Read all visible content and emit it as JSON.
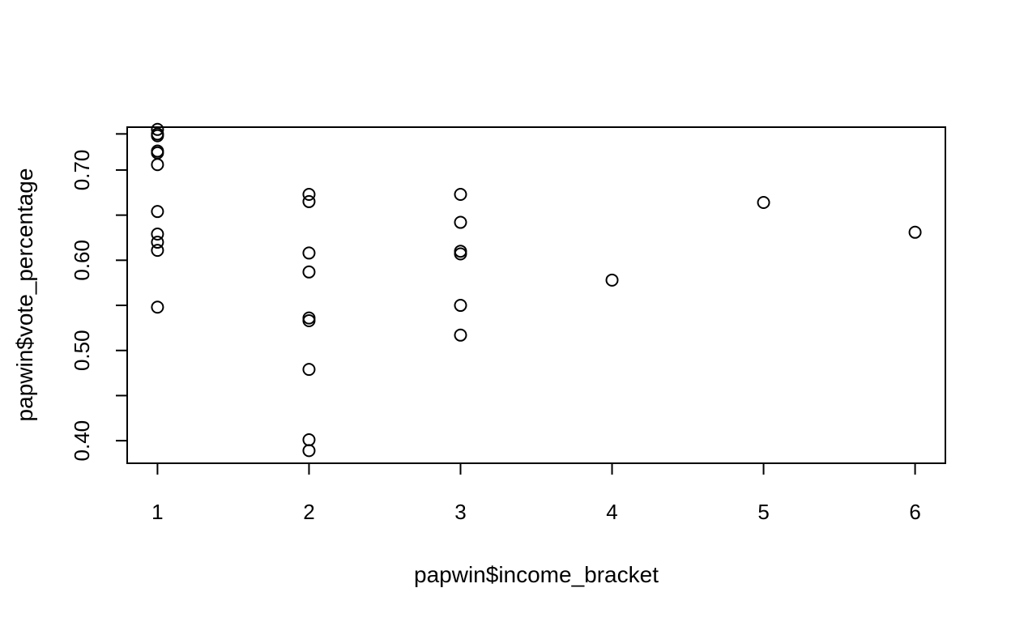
{
  "chart_data": {
    "type": "scatter",
    "title": "",
    "xlabel": "papwin$income_bracket",
    "ylabel": "papwin$vote_percentage",
    "xlim": [
      0.8,
      6.2
    ],
    "ylim": [
      0.375,
      0.7475
    ],
    "grid": false,
    "legend": "none",
    "x_ticks": [
      1,
      2,
      3,
      4,
      5,
      6
    ],
    "x_tick_labels": [
      "1",
      "2",
      "3",
      "4",
      "5",
      "6"
    ],
    "y_ticks": [
      0.4,
      0.45,
      0.5,
      0.55,
      0.6,
      0.65,
      0.7,
      0.74
    ],
    "y_tick_labels": [
      {
        "value": 0.4,
        "label": "0.40"
      },
      {
        "value": 0.5,
        "label": "0.50"
      },
      {
        "value": 0.6,
        "label": "0.60"
      },
      {
        "value": 0.7,
        "label": "0.70"
      }
    ],
    "points": [
      {
        "x": 1,
        "y": 0.745
      },
      {
        "x": 1,
        "y": 0.74
      },
      {
        "x": 1,
        "y": 0.738
      },
      {
        "x": 1,
        "y": 0.721
      },
      {
        "x": 1,
        "y": 0.719
      },
      {
        "x": 1,
        "y": 0.706
      },
      {
        "x": 1,
        "y": 0.654
      },
      {
        "x": 1,
        "y": 0.629
      },
      {
        "x": 1,
        "y": 0.62
      },
      {
        "x": 1,
        "y": 0.611
      },
      {
        "x": 1,
        "y": 0.548
      },
      {
        "x": 2,
        "y": 0.673
      },
      {
        "x": 2,
        "y": 0.665
      },
      {
        "x": 2,
        "y": 0.608
      },
      {
        "x": 2,
        "y": 0.587
      },
      {
        "x": 2,
        "y": 0.536
      },
      {
        "x": 2,
        "y": 0.533
      },
      {
        "x": 2,
        "y": 0.479
      },
      {
        "x": 2,
        "y": 0.401
      },
      {
        "x": 2,
        "y": 0.389
      },
      {
        "x": 3,
        "y": 0.673
      },
      {
        "x": 3,
        "y": 0.642
      },
      {
        "x": 3,
        "y": 0.61
      },
      {
        "x": 3,
        "y": 0.607
      },
      {
        "x": 3,
        "y": 0.55
      },
      {
        "x": 3,
        "y": 0.517
      },
      {
        "x": 4,
        "y": 0.578
      },
      {
        "x": 5,
        "y": 0.664
      },
      {
        "x": 6,
        "y": 0.631
      }
    ],
    "point_style": {
      "shape": "open-circle",
      "stroke": "#000000",
      "fill": "none"
    }
  }
}
